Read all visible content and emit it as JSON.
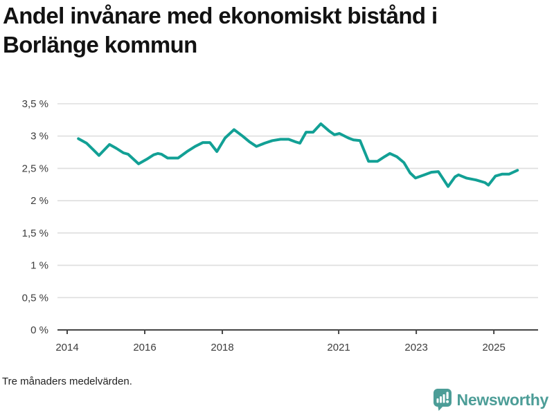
{
  "header": {
    "title": "Andel invånare med ekonomiskt bistånd i\nBorlänge kommun"
  },
  "footer": {
    "note": "Tre månaders medelvärden."
  },
  "brand": {
    "name": "Newsworthy",
    "logo_icon": "speech-bubble-bar-chart-exclamation"
  },
  "colors": {
    "line": "#12a095",
    "grid": "#dedede",
    "axis": "#444444",
    "tick_text": "#3c3c3c",
    "brand": "#4c9d97",
    "title_text": "#121212"
  },
  "chart_data": {
    "type": "line",
    "title": "Andel invånare med ekonomiskt bistånd i Borlänge kommun",
    "subtitle": "Tre månaders medelvärden.",
    "xlabel": "",
    "ylabel": "",
    "unit": "%",
    "grid": "horizontal",
    "legend_position": "none",
    "ylim": [
      0,
      3.5
    ],
    "xlim": [
      2013.75,
      2026.14
    ],
    "y_ticks": [
      {
        "v": 0,
        "label": "0 %"
      },
      {
        "v": 0.5,
        "label": "0,5 %"
      },
      {
        "v": 1,
        "label": "1 %"
      },
      {
        "v": 1.5,
        "label": "1,5 %"
      },
      {
        "v": 2,
        "label": "2 %"
      },
      {
        "v": 2.5,
        "label": "2,5 %"
      },
      {
        "v": 3,
        "label": "3 %"
      },
      {
        "v": 3.5,
        "label": "3,5 %"
      }
    ],
    "x_ticks": [
      {
        "v": 2014,
        "label": "2014"
      },
      {
        "v": 2016,
        "label": "2016"
      },
      {
        "v": 2018,
        "label": "2018"
      },
      {
        "v": 2021,
        "label": "2021"
      },
      {
        "v": 2023,
        "label": "2023"
      },
      {
        "v": 2025,
        "label": "2025"
      }
    ],
    "series": [
      {
        "name": "Andel invånare med ekonomiskt bistånd",
        "points": [
          [
            2014.29,
            2.96
          ],
          [
            2014.5,
            2.89
          ],
          [
            2014.67,
            2.79
          ],
          [
            2014.82,
            2.7
          ],
          [
            2015.09,
            2.87
          ],
          [
            2015.27,
            2.81
          ],
          [
            2015.45,
            2.74
          ],
          [
            2015.57,
            2.72
          ],
          [
            2015.84,
            2.57
          ],
          [
            2016.05,
            2.64
          ],
          [
            2016.23,
            2.71
          ],
          [
            2016.34,
            2.73
          ],
          [
            2016.43,
            2.72
          ],
          [
            2016.59,
            2.66
          ],
          [
            2016.86,
            2.66
          ],
          [
            2017.09,
            2.76
          ],
          [
            2017.3,
            2.84
          ],
          [
            2017.5,
            2.9
          ],
          [
            2017.68,
            2.9
          ],
          [
            2017.86,
            2.76
          ],
          [
            2018.07,
            2.97
          ],
          [
            2018.3,
            3.1
          ],
          [
            2018.52,
            3.0
          ],
          [
            2018.7,
            2.91
          ],
          [
            2018.88,
            2.84
          ],
          [
            2019.09,
            2.89
          ],
          [
            2019.29,
            2.93
          ],
          [
            2019.5,
            2.95
          ],
          [
            2019.71,
            2.95
          ],
          [
            2019.89,
            2.91
          ],
          [
            2020.0,
            2.89
          ],
          [
            2020.16,
            3.06
          ],
          [
            2020.34,
            3.06
          ],
          [
            2020.54,
            3.19
          ],
          [
            2020.75,
            3.08
          ],
          [
            2020.89,
            3.02
          ],
          [
            2021.02,
            3.04
          ],
          [
            2021.25,
            2.97
          ],
          [
            2021.38,
            2.94
          ],
          [
            2021.55,
            2.93
          ],
          [
            2021.77,
            2.61
          ],
          [
            2022.0,
            2.61
          ],
          [
            2022.18,
            2.68
          ],
          [
            2022.32,
            2.73
          ],
          [
            2022.5,
            2.68
          ],
          [
            2022.68,
            2.59
          ],
          [
            2022.84,
            2.43
          ],
          [
            2022.98,
            2.35
          ],
          [
            2023.21,
            2.4
          ],
          [
            2023.39,
            2.44
          ],
          [
            2023.57,
            2.45
          ],
          [
            2023.82,
            2.22
          ],
          [
            2024.0,
            2.37
          ],
          [
            2024.09,
            2.4
          ],
          [
            2024.29,
            2.35
          ],
          [
            2024.54,
            2.32
          ],
          [
            2024.77,
            2.28
          ],
          [
            2024.86,
            2.24
          ],
          [
            2025.04,
            2.38
          ],
          [
            2025.21,
            2.41
          ],
          [
            2025.39,
            2.41
          ],
          [
            2025.61,
            2.47
          ]
        ]
      }
    ]
  }
}
